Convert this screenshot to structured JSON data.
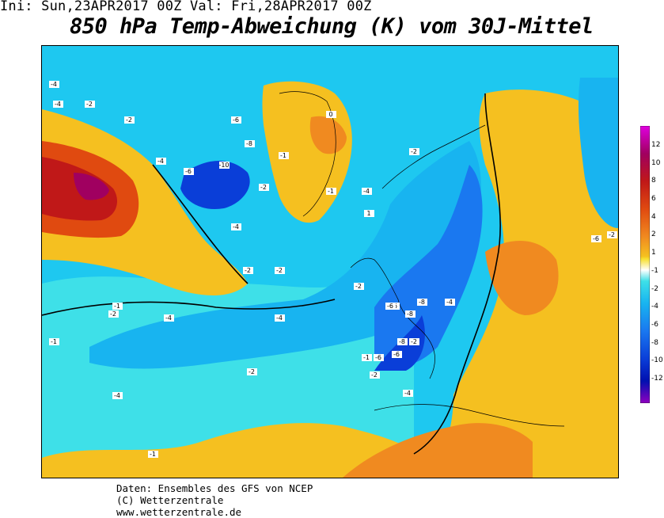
{
  "header": {
    "init_text": "Ini: Sun,23APR2017 00Z Val: Fri,28APR2017 00Z",
    "title": "850 hPa Temp-Abweichung (K) vom 30J-Mittel"
  },
  "credits": {
    "line1": "Daten: Ensembles des GFS von NCEP",
    "line2": "(C) Wetterzentrale",
    "line3": "www.wetterzentrale.de"
  },
  "legend": {
    "labels": [
      "12",
      "10",
      "8",
      "6",
      "4",
      "2",
      "1",
      "-1",
      "-2",
      "-4",
      "-6",
      "-8",
      "-10",
      "-12"
    ],
    "colors": [
      "#e000e0",
      "#a00060",
      "#c01818",
      "#e04a10",
      "#f08a20",
      "#f5c020",
      "#f8e030",
      "#ffffff",
      "#3ee0e8",
      "#18b4f0",
      "#1a78f0",
      "#0a3ed8",
      "#0010b0",
      "#9000c0"
    ]
  },
  "map": {
    "contour_labels": [
      "-4",
      "-4",
      "-2",
      "-2",
      "-6",
      "-8",
      "-10",
      "-6",
      "-4",
      "-2",
      "-1",
      "0",
      "1",
      "-2",
      "-4",
      "-6",
      "-8",
      "-4",
      "-2",
      "-1",
      "-4",
      "-2",
      "-2",
      "-1",
      "-4",
      "-2",
      "-1",
      "-6",
      "-8",
      "-4",
      "-6",
      "-8",
      "-6",
      "-4",
      "-2",
      "-2",
      "-1",
      "-1",
      "-4",
      "-2",
      "-6",
      "-2"
    ],
    "colors": {
      "cold_light": "#3ee0e8",
      "cold_mid": "#18b4f0",
      "cold_dark": "#1a78f0",
      "cold_deep": "#0a3ed8",
      "warm_light": "#f8e030",
      "warm_mid": "#f5c020",
      "warm_orange": "#f08a20",
      "warm_red": "#c01818",
      "warm_magenta": "#a00060",
      "neutral": "#ffffff"
    }
  }
}
